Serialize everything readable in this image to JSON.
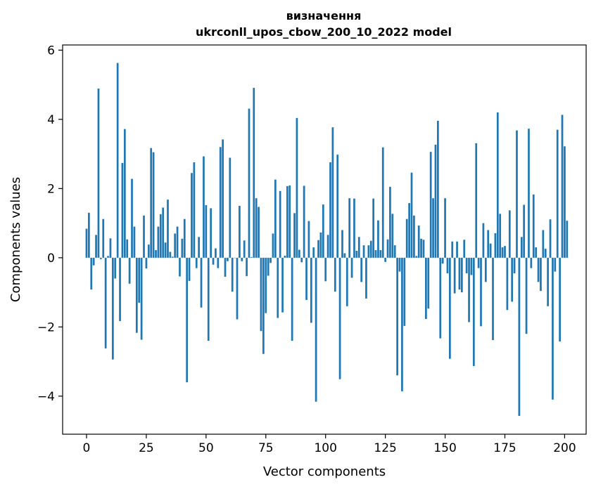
{
  "chart_data": {
    "type": "bar",
    "title": "визначення",
    "subtitle": "ukrconll_upos_cbow_200_10_2022 model",
    "xlabel": "Vector components",
    "ylabel": "Components values",
    "xlim": [
      -10,
      209
    ],
    "ylim": [
      -5.1,
      6.15
    ],
    "xticks": [
      0,
      25,
      50,
      75,
      100,
      125,
      150,
      175,
      200
    ],
    "xtick_labels": [
      "0",
      "25",
      "50",
      "75",
      "100",
      "125",
      "150",
      "175",
      "200"
    ],
    "yticks": [
      -4,
      -2,
      0,
      2,
      4,
      6
    ],
    "ytick_labels": [
      "−4",
      "−2",
      "0",
      "2",
      "4",
      "6"
    ],
    "bar_color": "#1f77b4",
    "grid": false,
    "legend": "none",
    "series": [
      {
        "values": [
          0.84,
          1.3,
          -0.92,
          -0.22,
          0.66,
          4.89,
          -0.04,
          1.12,
          -2.62,
          0.05,
          0.56,
          -2.94,
          -0.6,
          5.63,
          -1.83,
          2.74,
          3.72,
          0.53,
          -0.75,
          2.28,
          0.9,
          -2.17,
          -1.3,
          -2.37,
          1.22,
          -0.31,
          0.38,
          3.17,
          3.05,
          0.22,
          0.9,
          1.26,
          1.45,
          0.44,
          1.68,
          0.17,
          0.03,
          0.7,
          0.9,
          -0.54,
          0.55,
          1.12,
          -3.6,
          -0.67,
          2.45,
          2.76,
          -0.3,
          0.6,
          -1.44,
          2.93,
          1.52,
          -2.4,
          1.43,
          -0.2,
          0.27,
          -0.3,
          3.2,
          3.42,
          -0.55,
          -0.1,
          2.89,
          -0.98,
          -0.01,
          -1.78,
          1.5,
          -0.1,
          0.5,
          -0.53,
          4.31,
          0.02,
          4.91,
          1.72,
          1.47,
          -2.12,
          -2.78,
          -1.6,
          -0.52,
          -0.15,
          0.7,
          2.26,
          -1.74,
          1.93,
          -1.58,
          0.06,
          2.07,
          2.09,
          -2.4,
          1.29,
          4.04,
          0.23,
          -0.13,
          2.08,
          -1.22,
          1.06,
          -1.88,
          0.3,
          -4.16,
          0.51,
          0.73,
          1.54,
          -0.68,
          0.66,
          2.76,
          3.77,
          -0.98,
          2.98,
          -3.51,
          0.8,
          0.13,
          -1.4,
          1.72,
          -0.58,
          1.71,
          0.2,
          0.6,
          -0.7,
          0.36,
          -1.18,
          0.36,
          0.49,
          1.71,
          0.22,
          1.08,
          0.22,
          3.19,
          -0.12,
          0.53,
          2.05,
          1.27,
          0.36,
          -3.4,
          -0.4,
          -3.86,
          -1.97,
          1.12,
          1.58,
          2.46,
          1.22,
          0.05,
          0.93,
          0.55,
          0.52,
          -1.77,
          -1.47,
          3.06,
          1.72,
          3.27,
          3.96,
          -2.33,
          -0.17,
          1.72,
          -0.45,
          -2.92,
          0.47,
          -1.03,
          0.47,
          -0.92,
          -1.0,
          0.52,
          -0.45,
          -1.86,
          -0.5,
          -3.13,
          3.31,
          -0.3,
          -1.98,
          1.0,
          -0.7,
          0.8,
          0.41,
          -2.38,
          0.71,
          4.2,
          1.27,
          0.3,
          0.34,
          -1.51,
          1.37,
          -1.27,
          -0.45,
          3.68,
          -4.57,
          0.6,
          1.53,
          -2.2,
          3.73,
          -0.3,
          1.83,
          0.3,
          -0.7,
          -0.96,
          0.8,
          0.26,
          -1.4,
          1.11,
          -4.1,
          -0.4,
          3.7,
          -2.42,
          4.13,
          3.22,
          1.07
        ]
      }
    ]
  }
}
